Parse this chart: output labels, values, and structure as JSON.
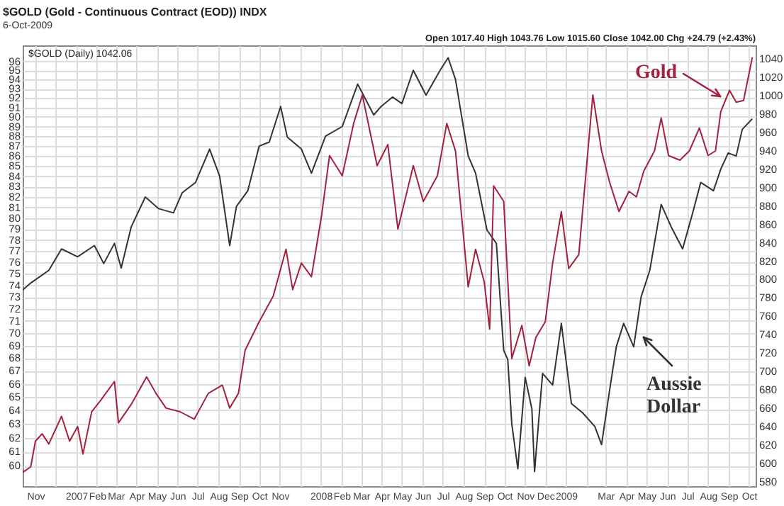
{
  "chart_data": {
    "type": "line",
    "title": "$GOLD (Gold - Continuous Contract (EOD)) INDX",
    "subtitle": "6-Oct-2009",
    "annotations": [
      "Open 1017.40 High 1043.76 Low 1015.60 Close 1042.00 Chg +24.79 (+2.43%)",
      "$GOLD (Daily) 1042.06"
    ],
    "log": true,
    "grid": true,
    "line_style": "solid",
    "marker": "none",
    "xlim": [
      "2006-10-13",
      "2009-10-11"
    ],
    "xticks": [
      {
        "value": "2006-11-01",
        "label": "Nov"
      },
      {
        "value": "2006-12-01",
        "label": null
      },
      {
        "value": "2007-01-01",
        "label": "2007"
      },
      {
        "value": "2007-02-01",
        "label": "Feb"
      },
      {
        "value": "2007-03-01",
        "label": "Mar"
      },
      {
        "value": "2007-04-01",
        "label": "Apr"
      },
      {
        "value": "2007-05-01",
        "label": "May"
      },
      {
        "value": "2007-06-01",
        "label": "Jun"
      },
      {
        "value": "2007-07-01",
        "label": "Jul"
      },
      {
        "value": "2007-08-01",
        "label": "Aug"
      },
      {
        "value": "2007-09-01",
        "label": "Sep"
      },
      {
        "value": "2007-10-01",
        "label": "Oct"
      },
      {
        "value": "2007-11-01",
        "label": "Nov"
      },
      {
        "value": "2007-12-01",
        "label": null
      },
      {
        "value": "2008-01-01",
        "label": "2008"
      },
      {
        "value": "2008-02-01",
        "label": "Feb"
      },
      {
        "value": "2008-03-01",
        "label": "Mar"
      },
      {
        "value": "2008-04-01",
        "label": "Apr"
      },
      {
        "value": "2008-05-01",
        "label": "May"
      },
      {
        "value": "2008-06-01",
        "label": "Jun"
      },
      {
        "value": "2008-07-01",
        "label": "Jul"
      },
      {
        "value": "2008-08-01",
        "label": "Aug"
      },
      {
        "value": "2008-09-01",
        "label": "Sep"
      },
      {
        "value": "2008-10-01",
        "label": "Oct"
      },
      {
        "value": "2008-11-01",
        "label": "Nov"
      },
      {
        "value": "2008-12-01",
        "label": "Dec"
      },
      {
        "value": "2009-01-01",
        "label": "2009"
      },
      {
        "value": "2009-02-01",
        "label": null
      },
      {
        "value": "2009-03-01",
        "label": "Mar"
      },
      {
        "value": "2009-04-01",
        "label": "Apr"
      },
      {
        "value": "2009-05-01",
        "label": "May"
      },
      {
        "value": "2009-06-01",
        "label": "Jun"
      },
      {
        "value": "2009-07-01",
        "label": "Jul"
      },
      {
        "value": "2009-08-01",
        "label": "Aug"
      },
      {
        "value": "2009-09-01",
        "label": "Sep"
      },
      {
        "value": "2009-10-01",
        "label": "Oct"
      }
    ],
    "ylim": [
      58.6,
      97.8
    ],
    "yticks": [
      60,
      61,
      62,
      63,
      64,
      65,
      66,
      67,
      68,
      69,
      70,
      71,
      72,
      73,
      74,
      75,
      76,
      77,
      78,
      79,
      80,
      81,
      82,
      83,
      84,
      85,
      86,
      87,
      88,
      89,
      90,
      91,
      92,
      93,
      94,
      95,
      96
    ],
    "y2lim": [
      575,
      1055
    ],
    "y2ticks": [
      580,
      600,
      620,
      640,
      660,
      680,
      700,
      720,
      740,
      760,
      780,
      800,
      820,
      840,
      860,
      880,
      900,
      920,
      940,
      960,
      980,
      1000,
      1020,
      1040
    ],
    "series": [
      {
        "name": "Aussie Dollar",
        "color": "#333333",
        "x": [
          "2006-10-13",
          "2006-10-25",
          "2006-11-21",
          "2006-12-10",
          "2007-01-03",
          "2007-01-28",
          "2007-02-11",
          "2007-02-27",
          "2007-03-09",
          "2007-03-24",
          "2007-04-14",
          "2007-05-04",
          "2007-05-26",
          "2007-06-08",
          "2007-06-28",
          "2007-07-19",
          "2007-08-03",
          "2007-08-18",
          "2007-08-28",
          "2007-09-14",
          "2007-10-01",
          "2007-10-16",
          "2007-11-02",
          "2007-11-12",
          "2007-12-03",
          "2007-12-18",
          "2008-01-08",
          "2008-02-02",
          "2008-02-25",
          "2008-03-20",
          "2008-03-31",
          "2008-04-17",
          "2008-05-01",
          "2008-05-18",
          "2008-06-06",
          "2008-06-27",
          "2008-07-09",
          "2008-07-20",
          "2008-08-08",
          "2008-08-19",
          "2008-09-05",
          "2008-09-19",
          "2008-09-30",
          "2008-10-06",
          "2008-10-12",
          "2008-10-21",
          "2008-11-01",
          "2008-11-11",
          "2008-11-15",
          "2008-11-27",
          "2008-12-12",
          "2008-12-25",
          "2009-01-09",
          "2009-01-26",
          "2009-02-13",
          "2009-02-23",
          "2009-03-07",
          "2009-03-17",
          "2009-03-28",
          "2009-04-12",
          "2009-04-23",
          "2009-05-06",
          "2009-05-23",
          "2009-06-07",
          "2009-06-24",
          "2009-07-09",
          "2009-07-21",
          "2009-08-09",
          "2009-08-20",
          "2009-08-31",
          "2009-09-12",
          "2009-09-21",
          "2009-10-06"
        ],
        "values": [
          73.6,
          74.2,
          75.3,
          77.2,
          76.5,
          77.5,
          75.9,
          77.7,
          75.5,
          79.2,
          82.0,
          80.9,
          80.5,
          82.4,
          83.4,
          86.7,
          84.0,
          77.5,
          81.1,
          82.6,
          87.0,
          87.4,
          91.1,
          87.9,
          86.7,
          84.3,
          88.0,
          89.0,
          93.5,
          90.2,
          91.1,
          92.1,
          91.4,
          95.0,
          92.3,
          95.0,
          96.4,
          94.0,
          86.0,
          84.3,
          78.9,
          77.7,
          68.6,
          67.9,
          63.0,
          59.8,
          66.5,
          64.1,
          59.6,
          66.8,
          65.9,
          70.8,
          64.5,
          63.8,
          62.8,
          61.5,
          65.5,
          68.9,
          70.8,
          68.9,
          73.0,
          75.3,
          81.3,
          79.2,
          77.2,
          80.5,
          83.4,
          82.6,
          84.7,
          86.3,
          86.0,
          88.7,
          89.8
        ]
      },
      {
        "name": "Gold",
        "color": "#a3213f",
        "axis": "y2",
        "x": [
          "2006-10-13",
          "2006-10-25",
          "2006-11-01",
          "2006-11-11",
          "2006-11-21",
          "2006-12-10",
          "2006-12-22",
          "2007-01-03",
          "2007-01-11",
          "2007-01-24",
          "2007-02-07",
          "2007-02-27",
          "2007-03-05",
          "2007-03-24",
          "2007-04-16",
          "2007-04-30",
          "2007-05-15",
          "2007-06-05",
          "2007-06-26",
          "2007-07-17",
          "2007-08-07",
          "2007-08-18",
          "2007-08-31",
          "2007-09-10",
          "2007-10-01",
          "2007-10-22",
          "2007-11-10",
          "2007-11-20",
          "2007-12-03",
          "2007-12-18",
          "2008-01-02",
          "2008-01-14",
          "2008-02-02",
          "2008-02-19",
          "2008-03-03",
          "2008-03-25",
          "2008-04-10",
          "2008-04-25",
          "2008-05-18",
          "2008-06-02",
          "2008-06-23",
          "2008-07-07",
          "2008-07-20",
          "2008-08-08",
          "2008-08-19",
          "2008-09-01",
          "2008-09-09",
          "2008-09-15",
          "2008-09-30",
          "2008-10-12",
          "2008-10-27",
          "2008-11-07",
          "2008-11-17",
          "2008-12-01",
          "2008-12-12",
          "2008-12-25",
          "2009-01-05",
          "2009-01-20",
          "2009-02-10",
          "2009-02-23",
          "2009-03-07",
          "2009-03-21",
          "2009-04-05",
          "2009-04-16",
          "2009-04-27",
          "2009-05-13",
          "2009-05-23",
          "2009-06-03",
          "2009-06-20",
          "2009-07-04",
          "2009-07-19",
          "2009-08-01",
          "2009-08-12",
          "2009-08-20",
          "2009-09-02",
          "2009-09-12",
          "2009-09-23",
          "2009-10-06"
        ],
        "values": [
          590,
          596,
          624,
          632,
          621,
          651,
          624,
          640,
          610,
          656,
          669,
          689,
          644,
          664,
          694,
          676,
          660,
          656,
          648,
          676,
          685,
          660,
          676,
          723,
          754,
          782,
          833,
          789,
          818,
          803,
          869,
          935,
          913,
          970,
          1001,
          924,
          947,
          855,
          924,
          885,
          913,
          970,
          940,
          792,
          833,
          797,
          746,
          902,
          885,
          714,
          750,
          706,
          737,
          754,
          818,
          874,
          812,
          827,
          1001,
          940,
          906,
          874,
          896,
          890,
          918,
          940,
          976,
          935,
          930,
          940,
          965,
          935,
          940,
          983,
          1006,
          993,
          995,
          1042
        ]
      }
    ]
  }
}
